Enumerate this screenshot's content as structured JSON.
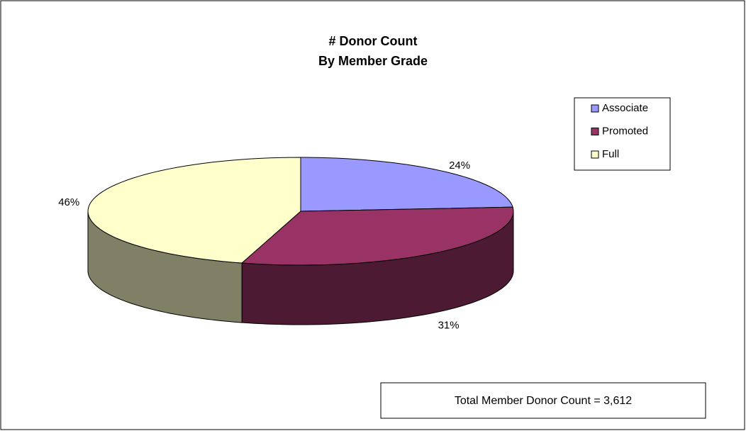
{
  "chart_data": {
    "type": "pie3d",
    "title": "# Donor Count",
    "subtitle": "By Member Grade",
    "categories": [
      "Associate",
      "Promoted",
      "Full"
    ],
    "values": [
      24,
      31,
      46
    ],
    "value_labels": [
      "24%",
      "31%",
      "46%"
    ],
    "colors": [
      "#9999ff",
      "#993366",
      "#ffffcc"
    ],
    "legend": "right",
    "annotation": "Total Member Donor Count = 3,612"
  }
}
